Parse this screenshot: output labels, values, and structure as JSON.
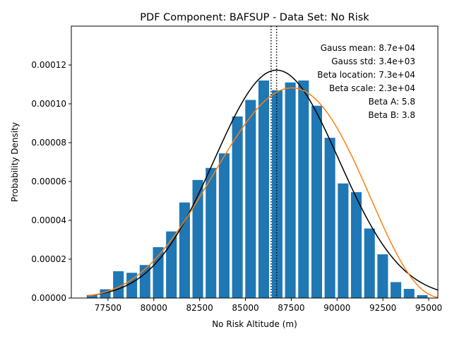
{
  "chart_data": {
    "type": "bar",
    "title": "PDF Component: BAFSUP - Data Set: No Risk",
    "xlabel": "No Risk Altitude (m)",
    "ylabel": "Probability Density",
    "xlim": [
      75500,
      95500
    ],
    "ylim": [
      0,
      0.00014
    ],
    "xticks": [
      77500,
      80000,
      82500,
      85000,
      87500,
      90000,
      92500,
      95000
    ],
    "xtick_labels": [
      "77500",
      "80000",
      "82500",
      "85000",
      "87500",
      "90000",
      "92500",
      "95000"
    ],
    "yticks": [
      0,
      2e-05,
      4e-05,
      6e-05,
      8e-05,
      0.0001,
      0.00012
    ],
    "ytick_labels": [
      "0.00000",
      "0.00002",
      "0.00004",
      "0.00006",
      "0.00008",
      "0.00010",
      "0.00012"
    ],
    "bar_width": 580,
    "bars": {
      "x": [
        76630,
        77350,
        78070,
        78800,
        79520,
        80240,
        80960,
        81680,
        82400,
        83120,
        83840,
        84560,
        85280,
        86000,
        86730,
        87450,
        88170,
        88890,
        89610,
        90330,
        91050,
        91770,
        92490,
        93210,
        93930,
        94650
      ],
      "values": [
        1.5e-06,
        4.5e-06,
        1.38e-05,
        1.3e-05,
        1.7e-05,
        2.62e-05,
        3.43e-05,
        4.92e-05,
        6.08e-05,
        6.7e-05,
        7.45e-05,
        9.35e-05,
        0.000102,
        0.000112,
        0.000107,
        0.000111,
        0.000112,
        9.9e-05,
        8.25e-05,
        5.9e-05,
        5.45e-05,
        3.58e-05,
        2.25e-05,
        8.2e-06,
        4.7e-06,
        1.5e-06
      ],
      "color": "#1f77b4"
    },
    "gauss": {
      "mean": 86700,
      "std": 3400,
      "color": "#000000"
    },
    "beta": {
      "location": 73000,
      "scale": 23000,
      "a": 5.8,
      "b": 3.8,
      "color": "#ff7f0e",
      "x_start": 76400
    },
    "vlines": {
      "x": [
        86400,
        86700
      ],
      "style": "dotted",
      "color": "#000000"
    },
    "annotations": [
      "Gauss mean: 8.7e+04",
      "Gauss std: 3.4e+03",
      "Beta location: 7.3e+04",
      "Beta scale: 2.3e+04",
      "Beta A: 5.8",
      "Beta B: 3.8"
    ],
    "annotation_placement": "top-right",
    "grid": false
  }
}
